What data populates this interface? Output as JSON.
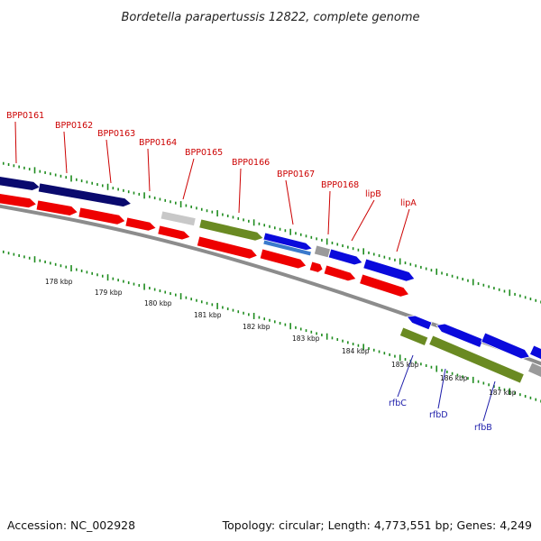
{
  "title": "Bordetella parapertussis 12822, complete genome",
  "footer": {
    "accession": "Accession: NC_002928",
    "topology": "Topology: circular; Length: 4,773,551 bp; Genes: 4,249"
  },
  "gene_labels_top": [
    "BPP0161",
    "BPP0162",
    "BPP0163",
    "BPP0164",
    "BPP0165",
    "BPP0166",
    "BPP0167",
    "BPP0168",
    "lipB",
    "lipA"
  ],
  "gene_labels_bottom": [
    "rfbC",
    "rfbD",
    "rfbB"
  ],
  "kbp_labels": [
    "178 kbp",
    "179 kbp",
    "180 kbp",
    "181 kbp",
    "182 kbp",
    "183 kbp",
    "184 kbp",
    "185 kbp",
    "186 kbp",
    "187 kbp"
  ],
  "colors": {
    "gene_label_top": "#cc0000",
    "gene_label_bottom": "#1c1caa",
    "tick": "#1e8c1e",
    "forward_dark": "#0a0a6e",
    "forward_blue": "#0a0adc",
    "reverse_red": "#ee0000",
    "olive": "#6a8a22",
    "grey": "#9a9a9a",
    "light_grey": "#c8c8c8",
    "steel_blue": "#3a7acc"
  }
}
